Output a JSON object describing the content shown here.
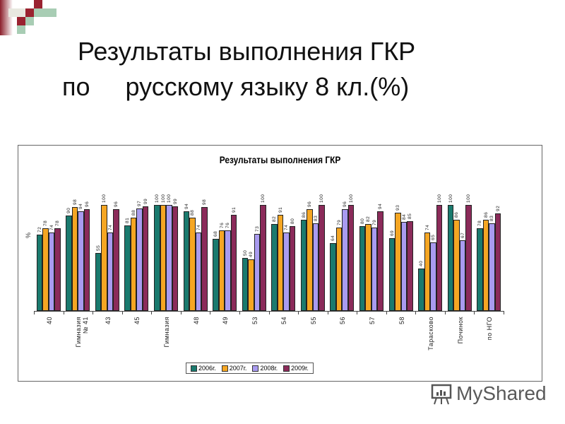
{
  "slide": {
    "title_line1": "Результаты выполнения ГКР",
    "title_line2": "по     русскому языку 8 кл.(%)"
  },
  "watermark": {
    "text": "MyShared"
  },
  "colors": {
    "2006г.": "#1a7a6e",
    "2007г.": "#f5a623",
    "2008г.": "#a99bf0",
    "2009г.": "#8b2b5a"
  },
  "chart_data": {
    "type": "bar",
    "title": "Результаты выполнения ГКР",
    "xlabel": "",
    "ylabel": "%",
    "ylim": [
      0,
      100
    ],
    "grid": false,
    "legend_position": "bottom",
    "categories": [
      "40",
      "Гимназия\n№ 41",
      "43",
      "45",
      "Гимназия",
      "48",
      "49",
      "53",
      "54",
      "55",
      "56",
      "57",
      "58",
      "Тарасково",
      "Починок",
      "по НГО"
    ],
    "series": [
      {
        "name": "2006г.",
        "values": [
          72,
          90,
          55,
          81,
          100,
          94,
          68,
          50,
          82,
          86,
          64,
          80,
          69,
          40,
          100,
          78
        ]
      },
      {
        "name": "2007г.",
        "values": [
          78,
          98,
          100,
          88,
          100,
          88,
          76,
          49,
          91,
          96,
          79,
          82,
          93,
          74,
          86,
          86
        ]
      },
      {
        "name": "2008г.",
        "values": [
          74,
          94,
          74,
          97,
          100,
          74,
          76,
          73,
          74,
          83,
          96,
          79,
          84,
          65,
          67,
          83
        ]
      },
      {
        "name": "2009г.",
        "values": [
          78,
          96,
          96,
          99,
          99,
          98,
          91,
          100,
          80,
          100,
          100,
          94,
          85,
          100,
          100,
          92
        ]
      }
    ]
  }
}
